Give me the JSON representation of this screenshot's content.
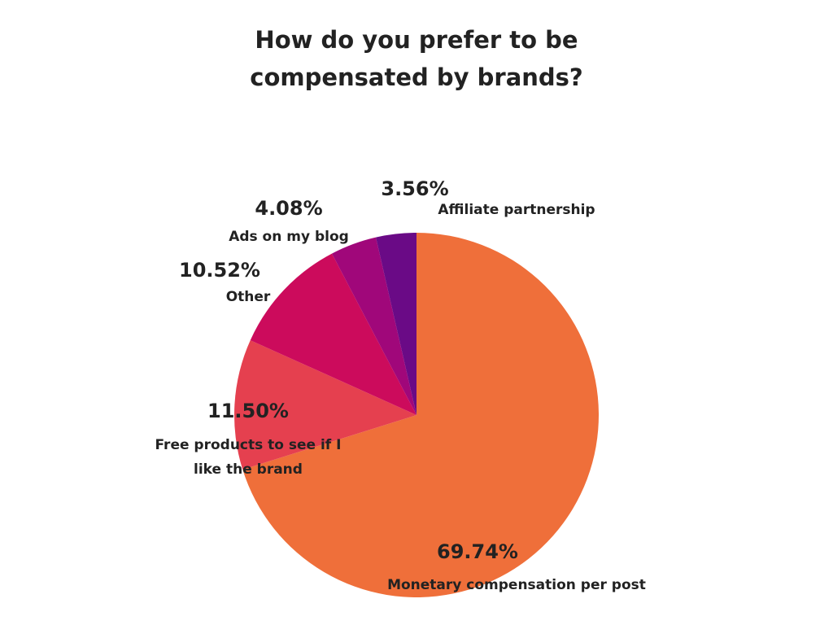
{
  "chart_data": {
    "type": "pie",
    "title": "How do you prefer to be compensated by brands?",
    "categories": [
      "Monetary compensation per post",
      "Free products to see if I like the brand",
      "Other",
      "Ads on my blog",
      "Affiliate partnership"
    ],
    "values": [
      69.74,
      11.5,
      10.52,
      4.08,
      3.56
    ],
    "value_labels": [
      "69.74%",
      "11.50%",
      "10.52%",
      "4.08%",
      "3.56%"
    ],
    "colors": [
      "#ef6f3a",
      "#e5404f",
      "#cc0b5c",
      "#a0077a",
      "#6a0a86"
    ]
  }
}
